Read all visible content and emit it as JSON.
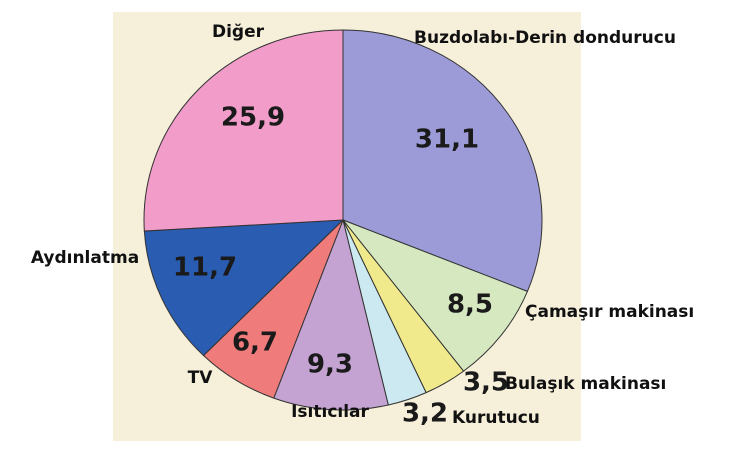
{
  "chart_data": {
    "type": "pie",
    "categories": [
      "Buzdolabı-Derin dondurucu",
      "Çamaşır makinası",
      "Bulaşık makinası",
      "Kurutucu",
      "Isıtıcılar",
      "TV",
      "Aydınlatma",
      "Diğer"
    ],
    "values": [
      31.1,
      8.5,
      3.5,
      3.2,
      9.3,
      6.7,
      11.7,
      25.9
    ],
    "value_labels": [
      "31,1",
      "8,5",
      "3,5",
      "3,2",
      "9,3",
      "6,7",
      "11,7",
      "25,9"
    ],
    "colors": [
      "#9c9bd8",
      "#d5e8c0",
      "#f1ea8c",
      "#cce9f1",
      "#c4a3d3",
      "#ef7b7b",
      "#2a5cb1",
      "#f19cc9"
    ]
  }
}
